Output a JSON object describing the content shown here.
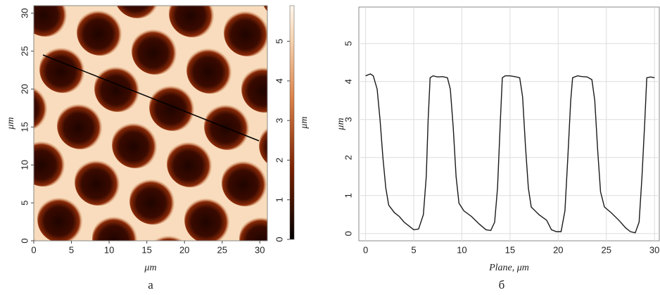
{
  "chart_data": [
    {
      "type": "heatmap",
      "xlabel": "μm",
      "ylabel": "μm",
      "colorbar_label": "μm",
      "caption": "а",
      "xlim": [
        0,
        31
      ],
      "ylim": [
        0,
        31
      ],
      "xticks": [
        0,
        5,
        10,
        15,
        20,
        25,
        30
      ],
      "yticks": [
        0,
        5,
        10,
        15,
        20,
        25,
        30
      ],
      "clim": [
        0,
        5.9
      ],
      "cticks": [
        0,
        1,
        2,
        3,
        4,
        5
      ]
    },
    {
      "type": "line",
      "xlabel": "Plane, μm",
      "ylabel": "μm",
      "caption": "б",
      "color": "#1a1a1a",
      "grid": true,
      "xlim": [
        -0.7,
        30.5
      ],
      "ylim": [
        -0.19,
        5.96
      ],
      "xticks": [
        0,
        5,
        10,
        15,
        20,
        25,
        30
      ],
      "yticks": [
        0,
        1,
        2,
        3,
        4,
        5
      ],
      "x": [
        0,
        0.5,
        0.8,
        1.2,
        1.5,
        1.8,
        2.1,
        2.4,
        3,
        3.5,
        4,
        4.5,
        5,
        5.5,
        6,
        6.3,
        6.5,
        6.7,
        7,
        7.5,
        8,
        8.5,
        8.8,
        9.1,
        9.4,
        9.7,
        10.2,
        11,
        11.8,
        12.5,
        13,
        13.4,
        13.7,
        14,
        14.2,
        14.5,
        15,
        15.5,
        16,
        16.3,
        16.6,
        16.9,
        17.2,
        18,
        18.8,
        19.3,
        19.8,
        20.3,
        20.7,
        21,
        21.3,
        21.5,
        22,
        22.5,
        23,
        23.5,
        23.8,
        24.1,
        24.4,
        24.8,
        25.5,
        26.3,
        27,
        27.5,
        28,
        28.4,
        28.7,
        29,
        29.2,
        29.6,
        30
      ],
      "values": [
        4.15,
        4.2,
        4.15,
        3.8,
        3.0,
        2.0,
        1.2,
        0.75,
        0.55,
        0.45,
        0.3,
        0.2,
        0.1,
        0.12,
        0.5,
        1.5,
        3.0,
        4.1,
        4.15,
        4.12,
        4.13,
        4.1,
        3.8,
        2.8,
        1.5,
        0.8,
        0.6,
        0.45,
        0.25,
        0.1,
        0.08,
        0.3,
        1.2,
        3.0,
        4.1,
        4.15,
        4.15,
        4.13,
        4.1,
        3.6,
        2.3,
        1.2,
        0.7,
        0.5,
        0.35,
        0.1,
        0.05,
        0.05,
        0.6,
        2.0,
        3.5,
        4.1,
        4.15,
        4.13,
        4.12,
        4.05,
        3.5,
        2.2,
        1.1,
        0.7,
        0.55,
        0.35,
        0.15,
        0.05,
        0.02,
        0.3,
        1.5,
        3.0,
        4.1,
        4.12,
        4.1
      ]
    }
  ]
}
